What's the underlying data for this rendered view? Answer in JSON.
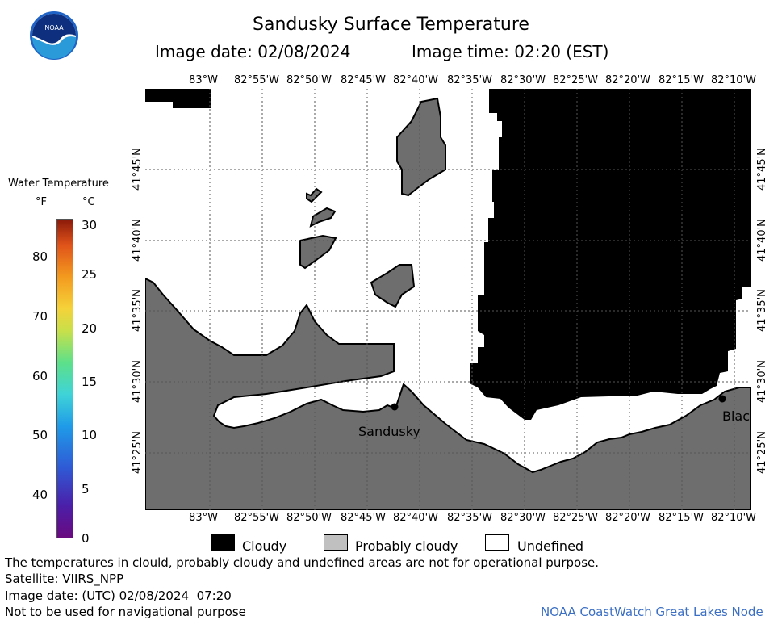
{
  "header": {
    "title": "Sandusky Surface Temperature",
    "image_date": "Image date: 02/08/2024",
    "image_time": "Image time: 02:20 (EST)"
  },
  "logo": {
    "text": "NOAA"
  },
  "colorbar": {
    "title": "Water Temperature",
    "unit_f": "°F",
    "unit_c": "°C",
    "f_ticks": [
      "80",
      "70",
      "60",
      "50",
      "40"
    ],
    "c_ticks": [
      "30",
      "25",
      "20",
      "15",
      "10",
      "5",
      "0"
    ]
  },
  "map": {
    "lon_labels": [
      "83°W",
      "82°55'W",
      "82°50'W",
      "82°45'W",
      "82°40'W",
      "82°35'W",
      "82°30'W",
      "82°25'W",
      "82°20'W",
      "82°15'W",
      "82°10'W"
    ],
    "lat_labels": [
      "41°45'N",
      "41°40'N",
      "41°35'N",
      "41°30'N",
      "41°25'N"
    ],
    "cities": [
      {
        "name": "Sandusky"
      },
      {
        "name": "Blac"
      }
    ]
  },
  "legend": [
    {
      "label": "Cloudy",
      "color": "#000000"
    },
    {
      "label": "Probably cloudy",
      "color": "#c0c0c0"
    },
    {
      "label": "Undefined",
      "color": "#ffffff"
    }
  ],
  "footer": {
    "disclaimer": "The temperatures in clould, probably cloudy and undefined areas are not for operational purpose.",
    "satellite": "Satellite: VIIRS_NPP",
    "utc_date": "Image date: (UTC) 02/08/2024  07:20",
    "nav_warning": "Not to be used for navigational purpose",
    "credit": "NOAA CoastWatch Great Lakes Node"
  },
  "colors": {
    "land": "#6e6e6e",
    "cloud": "#000000",
    "water": "#ffffff",
    "credit": "#3b6fc4"
  }
}
